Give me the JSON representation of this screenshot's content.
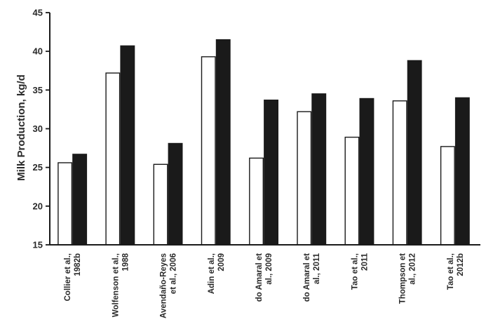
{
  "chart_data": {
    "type": "bar",
    "title": "",
    "xlabel": "",
    "ylabel": "Milk Production, kg/d",
    "ylim": [
      15,
      45
    ],
    "yticks": [
      15,
      20,
      25,
      30,
      35,
      40,
      45
    ],
    "grid": false,
    "legend": "none",
    "categories": [
      [
        "Collier et al.,",
        "1982b"
      ],
      [
        "Wolfenson et al.,",
        "1988"
      ],
      [
        "Avendaño-Reyes",
        "et al., 2006"
      ],
      [
        "Adin et al.,",
        "2009"
      ],
      [
        "do Amaral et",
        "al., 2009"
      ],
      [
        "do Amaral et",
        "al., 2011"
      ],
      [
        "Tao et al.,",
        "2011"
      ],
      [
        "Thompson et",
        "al., 2012"
      ],
      [
        "Tao et al.,",
        "2012b"
      ]
    ],
    "series": [
      {
        "fill": "#ffffff",
        "values": [
          25.6,
          37.2,
          25.4,
          39.3,
          26.2,
          32.2,
          28.9,
          33.6,
          27.7
        ]
      },
      {
        "fill": "#1a1a1a",
        "values": [
          26.7,
          40.7,
          28.1,
          41.5,
          33.7,
          34.5,
          33.9,
          38.8,
          34.0
        ]
      }
    ]
  }
}
